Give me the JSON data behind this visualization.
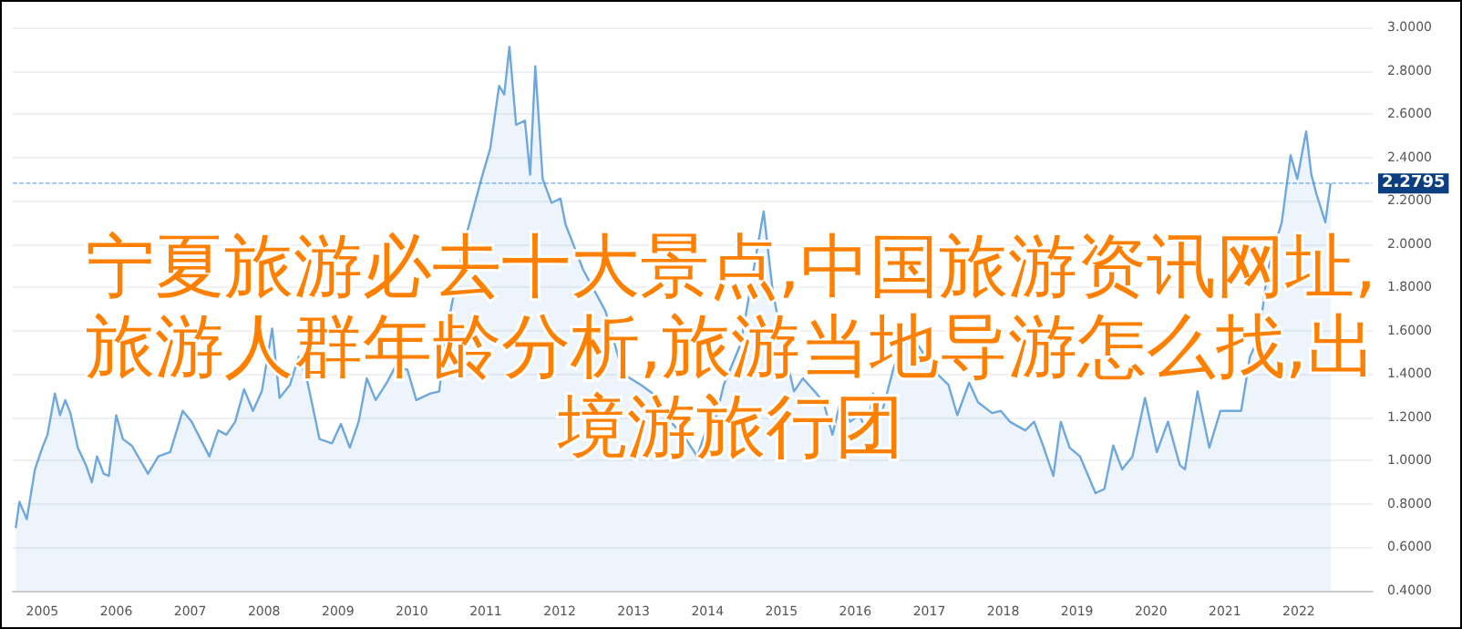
{
  "chart_data": {
    "type": "area",
    "title": "宁夏旅游必去十大景点,中国旅游资讯网址,旅游人群年龄分析,旅游当地导游怎么找,出境游旅行团",
    "series": [
      {
        "color": "#6fa8dc",
        "x": [
          2004.64,
          2004.69,
          2004.79,
          2004.9,
          2005.0,
          2005.07,
          2005.17,
          2005.24,
          2005.31,
          2005.38,
          2005.48,
          2005.59,
          2005.67,
          2005.74,
          2005.83,
          2005.9,
          2006.0,
          2006.09,
          2006.21,
          2006.43,
          2006.57,
          2006.73,
          2006.9,
          2007.02,
          2007.14,
          2007.26,
          2007.38,
          2007.49,
          2007.61,
          2007.73,
          2007.85,
          2007.97,
          2008.11,
          2008.21,
          2008.35,
          2008.47,
          2008.59,
          2008.75,
          2008.92,
          2009.04,
          2009.16,
          2009.28,
          2009.39,
          2009.51,
          2009.66,
          2009.77,
          2009.94,
          2010.06,
          2010.25,
          2010.37,
          2010.46,
          2010.58,
          2010.72,
          2010.94,
          2011.06,
          2011.18,
          2011.25,
          2011.32,
          2011.41,
          2011.53,
          2011.6,
          2011.67,
          2011.77,
          2011.89,
          2012.01,
          2012.08,
          2012.32,
          2012.62,
          2012.86,
          2013.1,
          2013.34,
          2013.5,
          2013.67,
          2013.86,
          2013.98,
          2014.1,
          2014.22,
          2014.45,
          2014.76,
          2014.88,
          2015.0,
          2015.17,
          2015.29,
          2015.45,
          2015.57,
          2015.69,
          2015.81,
          2015.93,
          2016.05,
          2016.16,
          2016.24,
          2016.35,
          2016.52,
          2016.66,
          2016.78,
          2016.95,
          2017.02,
          2017.11,
          2017.26,
          2017.38,
          2017.54,
          2017.66,
          2017.85,
          2017.97,
          2018.09,
          2018.3,
          2018.42,
          2018.54,
          2018.68,
          2018.78,
          2018.9,
          2019.04,
          2019.25,
          2019.37,
          2019.49,
          2019.61,
          2019.75,
          2019.92,
          2020.08,
          2020.23,
          2020.39,
          2020.46,
          2020.63,
          2020.79,
          2020.94,
          2021.1,
          2021.22,
          2021.34,
          2021.46,
          2021.58,
          2021.77,
          2021.89,
          2021.98,
          2022.1,
          2022.17,
          2022.24,
          2022.36,
          2022.43
        ],
        "values": [
          0.69,
          0.81,
          0.73,
          0.96,
          1.06,
          1.12,
          1.31,
          1.21,
          1.28,
          1.22,
          1.06,
          0.98,
          0.9,
          1.02,
          0.94,
          0.93,
          1.21,
          1.1,
          1.07,
          0.94,
          1.02,
          1.04,
          1.23,
          1.18,
          1.1,
          1.02,
          1.14,
          1.12,
          1.18,
          1.33,
          1.23,
          1.32,
          1.61,
          1.29,
          1.35,
          1.48,
          1.36,
          1.1,
          1.08,
          1.17,
          1.06,
          1.18,
          1.38,
          1.28,
          1.36,
          1.43,
          1.42,
          1.28,
          1.31,
          1.32,
          1.58,
          1.79,
          2.02,
          2.3,
          2.44,
          2.73,
          2.69,
          2.91,
          2.55,
          2.57,
          2.32,
          2.82,
          2.3,
          2.19,
          2.21,
          2.09,
          1.88,
          1.69,
          1.4,
          1.35,
          1.29,
          1.18,
          1.12,
          1.02,
          1.14,
          1.18,
          1.35,
          1.54,
          2.15,
          1.79,
          1.57,
          1.32,
          1.38,
          1.32,
          1.27,
          1.12,
          1.29,
          1.18,
          1.21,
          1.14,
          1.31,
          1.21,
          1.43,
          1.54,
          1.57,
          1.48,
          1.48,
          1.4,
          1.35,
          1.21,
          1.36,
          1.27,
          1.22,
          1.23,
          1.18,
          1.14,
          1.18,
          1.07,
          0.93,
          1.18,
          1.06,
          1.02,
          0.85,
          0.87,
          1.07,
          0.96,
          1.02,
          1.29,
          1.04,
          1.18,
          0.98,
          0.96,
          1.32,
          1.06,
          1.23,
          1.23,
          1.23,
          1.48,
          1.57,
          1.88,
          2.1,
          2.41,
          2.3,
          2.52,
          2.32,
          2.23,
          2.1,
          2.28
        ]
      }
    ],
    "xlim": [
      2004.6,
      2023.0
    ],
    "xticks": [
      2005,
      2006,
      2007,
      2008,
      2009,
      2010,
      2011,
      2012,
      2013,
      2014,
      2015,
      2016,
      2017,
      2018,
      2019,
      2020,
      2021,
      2022
    ],
    "ylim": [
      0.4,
      3.0
    ],
    "yticks": [
      {
        "value": 0.4,
        "label": "0.4000"
      },
      {
        "value": 0.6,
        "label": "0.6000"
      },
      {
        "value": 0.8,
        "label": "0.8000"
      },
      {
        "value": 1.0,
        "label": "1.0000"
      },
      {
        "value": 1.2,
        "label": "1.2000"
      },
      {
        "value": 1.4,
        "label": "1.4000"
      },
      {
        "value": 1.6,
        "label": "1.6000"
      },
      {
        "value": 1.8,
        "label": "1.8000"
      },
      {
        "value": 2.0,
        "label": "2.0000"
      },
      {
        "value": 2.2,
        "label": "2.2000"
      },
      {
        "value": 2.4,
        "label": "2.4000"
      },
      {
        "value": 2.6,
        "label": "2.6000"
      },
      {
        "value": 2.8,
        "label": "2.8000"
      },
      {
        "value": 3.0,
        "label": "3.0000"
      }
    ],
    "ref_lines": [
      {
        "axis": "y",
        "value": 2.2795,
        "label": "2.2795",
        "color": "#4a90d9",
        "line_style": "dashed"
      }
    ],
    "grid": "y",
    "marker": "none",
    "line_style": "solid"
  }
}
